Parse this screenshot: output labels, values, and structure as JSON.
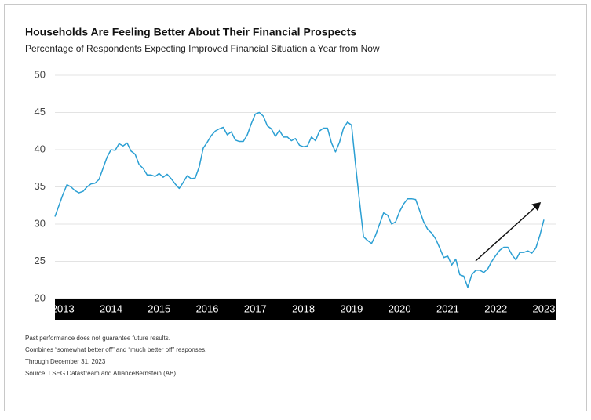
{
  "chart_data": {
    "type": "line",
    "title": "Households Are Feeling Better About Their Financial Prospects",
    "subtitle": "Percentage of Respondents Expecting Improved Financial Situation a Year from Now",
    "categories": [
      null,
      null,
      "2013",
      null,
      null,
      null,
      null,
      null,
      null,
      null,
      null,
      null,
      null,
      null,
      "2014",
      null,
      null,
      null,
      null,
      null,
      null,
      null,
      null,
      null,
      null,
      null,
      "2015",
      null,
      null,
      null,
      null,
      null,
      null,
      null,
      null,
      null,
      null,
      null,
      "2016",
      null,
      null,
      null,
      null,
      null,
      null,
      null,
      null,
      null,
      null,
      null,
      "2017",
      null,
      null,
      null,
      null,
      null,
      null,
      null,
      null,
      null,
      null,
      null,
      "2018",
      null,
      null,
      null,
      null,
      null,
      null,
      null,
      null,
      null,
      null,
      null,
      "2019",
      null,
      null,
      null,
      null,
      null,
      null,
      null,
      null,
      null,
      null,
      null,
      "2020",
      null,
      null,
      null,
      null,
      null,
      null,
      null,
      null,
      null,
      null,
      null,
      "2021",
      null,
      null,
      null,
      null,
      null,
      null,
      null,
      null,
      null,
      null,
      null,
      "2022",
      null,
      null,
      null,
      null,
      null,
      null,
      null,
      null,
      null,
      null,
      null,
      "2023"
    ],
    "values": [
      31,
      32.5,
      34,
      35.3,
      35,
      34.5,
      34.2,
      34.4,
      35,
      35.4,
      35.5,
      36,
      37.5,
      39,
      40,
      39.9,
      40.8,
      40.5,
      40.9,
      39.8,
      39.4,
      38,
      37.5,
      36.6,
      36.6,
      36.4,
      36.8,
      36.3,
      36.7,
      36.1,
      35.4,
      34.8,
      35.6,
      36.5,
      36.1,
      36.2,
      37.7,
      40.2,
      41,
      41.9,
      42.5,
      42.8,
      43,
      42,
      42.4,
      41.3,
      41.1,
      41.1,
      42,
      43.5,
      44.8,
      45,
      44.5,
      43.2,
      42.8,
      41.8,
      42.6,
      41.7,
      41.7,
      41.2,
      41.5,
      40.6,
      40.4,
      40.5,
      41.7,
      41.2,
      42.5,
      42.9,
      42.9,
      40.9,
      39.7,
      41,
      42.9,
      43.7,
      43.3,
      38,
      33,
      28.3,
      27.8,
      27.4,
      28.5,
      30,
      31.5,
      31.2,
      30,
      30.3,
      31.7,
      32.7,
      33.4,
      33.4,
      33.3,
      31.8,
      30.3,
      29.3,
      28.8,
      28,
      26.8,
      25.5,
      25.7,
      24.5,
      25.3,
      23.2,
      23,
      21.5,
      23.2,
      23.8,
      23.8,
      23.5,
      24,
      25,
      25.8,
      26.5,
      26.9,
      26.9,
      25.9,
      25.2,
      26.2,
      26.2,
      26.4,
      26.1,
      26.8,
      28.5,
      30.6
    ],
    "color": "#2b9fd3",
    "ylim": [
      20,
      50
    ],
    "yticks": [
      20,
      25,
      30,
      35,
      40,
      45,
      50
    ],
    "grid": true,
    "notes": [
      "Past performance does not guarantee future results.",
      "Combines “somewhat better off” and “much better off” responses.",
      "Through December 31, 2023",
      "Source: LSEG Datastream and AllianceBernstein (AB)"
    ]
  }
}
